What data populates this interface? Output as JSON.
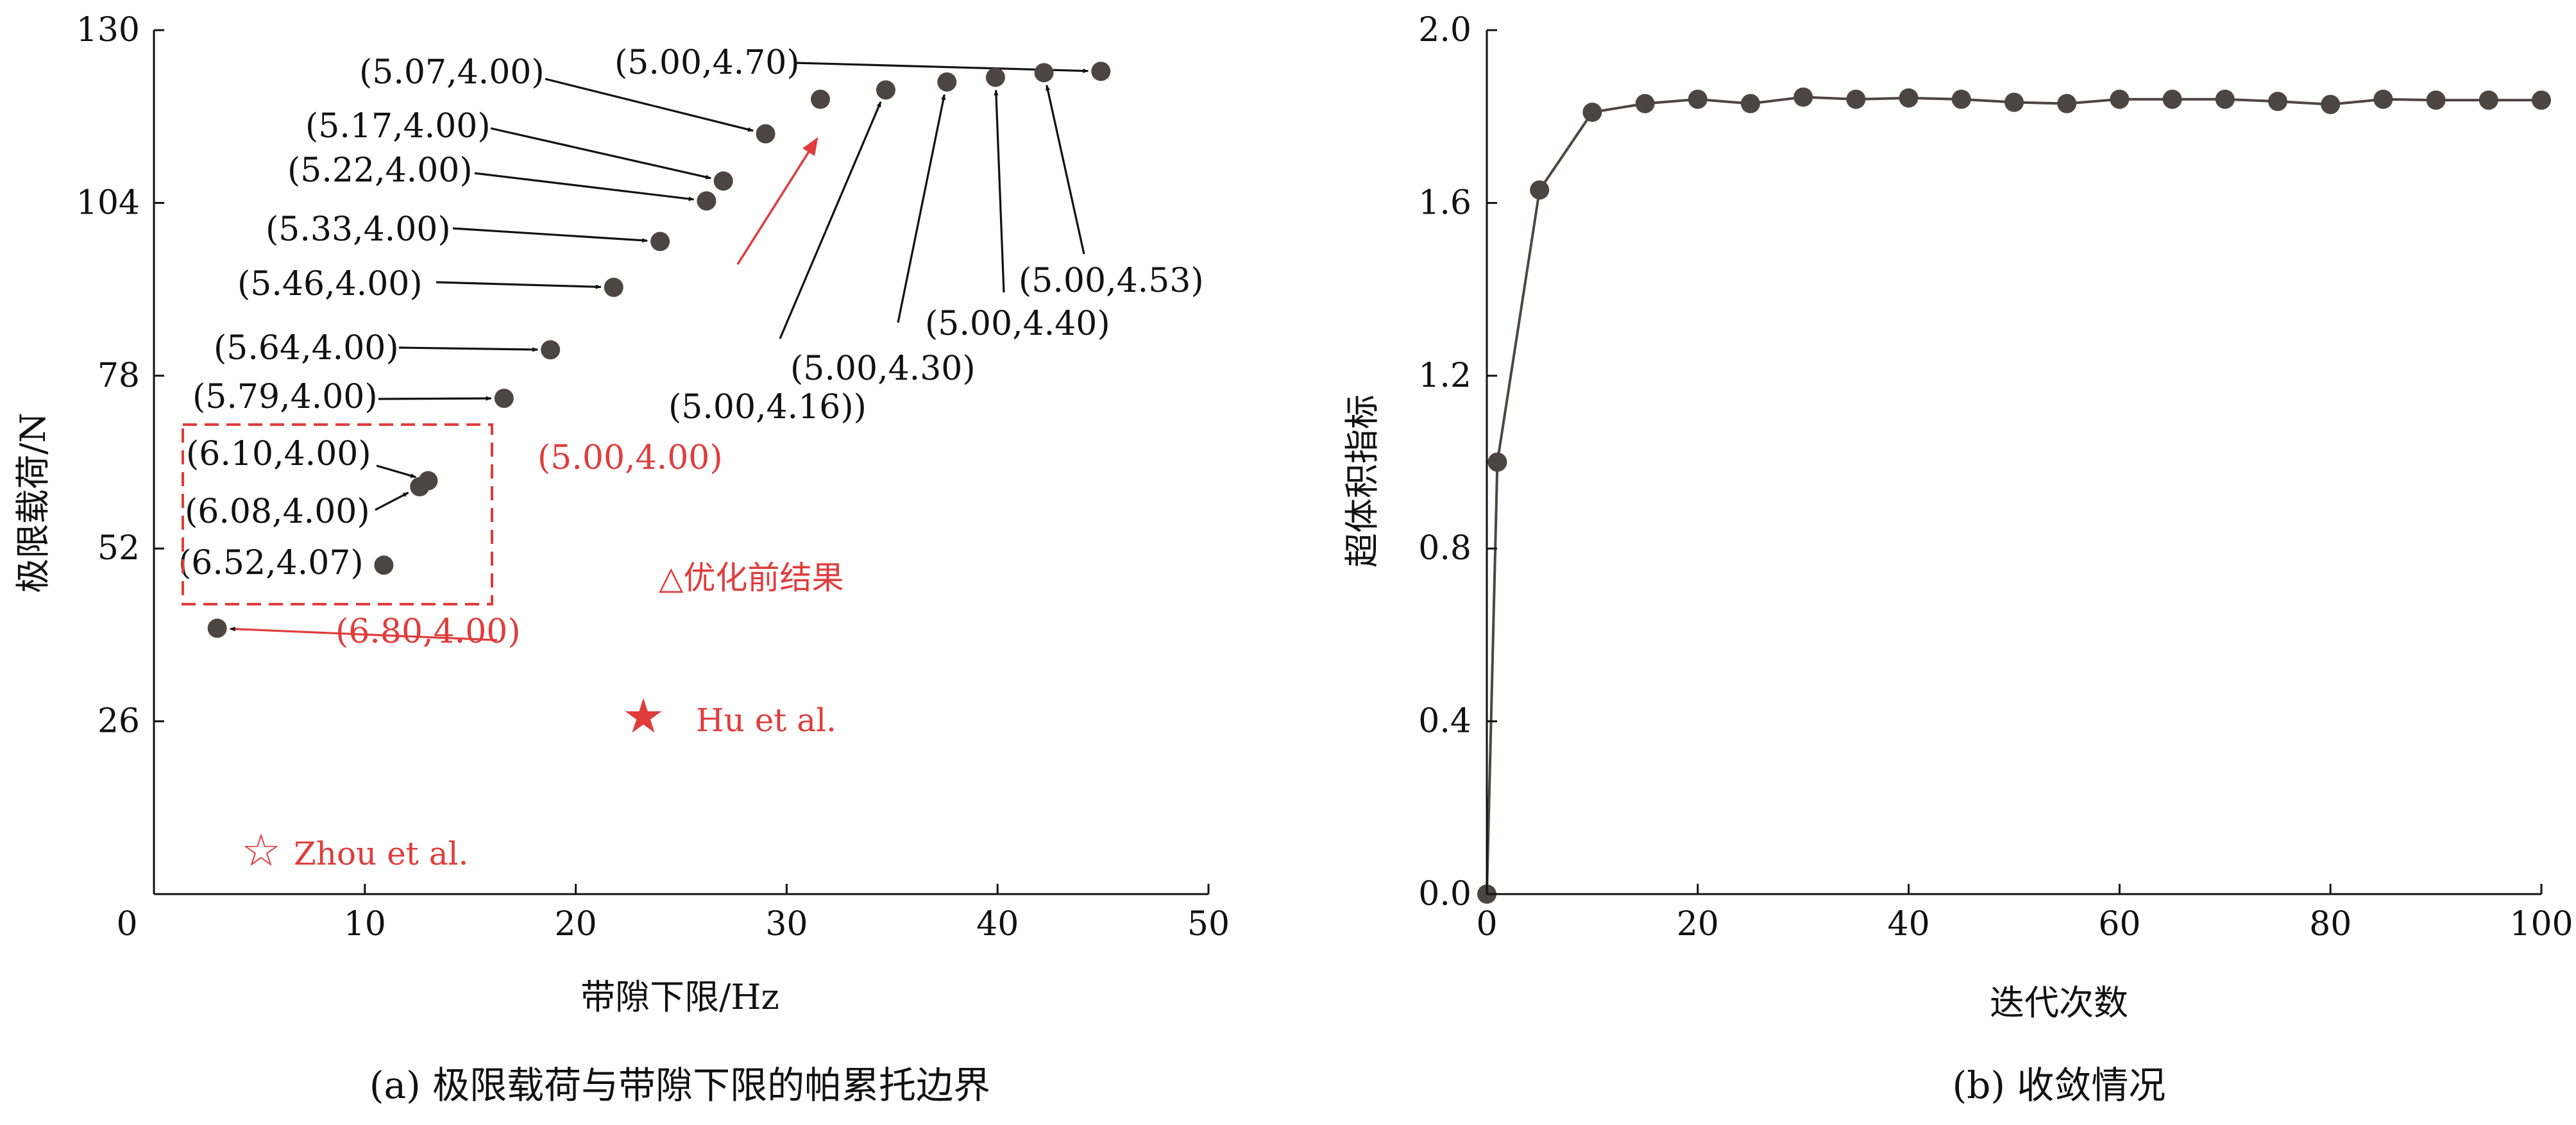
{
  "colors": {
    "point": "#4d4542",
    "line": "#4d4542",
    "highlight": "#e03c3c",
    "axis": "#111111"
  },
  "chart_data": [
    {
      "type": "scatter",
      "caption": "(a) 极限载荷与带隙下限的帕累托边界",
      "xlabel": "带隙下限/Hz",
      "ylabel": "极限载荷/N",
      "xlim": [
        0,
        50
      ],
      "ylim": [
        0,
        130
      ],
      "xticks": [
        "0",
        "10",
        "20",
        "30",
        "40",
        "50"
      ],
      "yticks": [
        "26",
        "52",
        "78",
        "104",
        "130"
      ],
      "grid": false,
      "series": [
        {
          "points": [
            {
              "x": 3.0,
              "y": 40.0,
              "label": "(6.80,4.00)",
              "label_color": "red"
            },
            {
              "x": 10.9,
              "y": 49.5,
              "label": "(6.52,4.07)"
            },
            {
              "x": 12.6,
              "y": 61.3,
              "label": "(6.08,4.00)"
            },
            {
              "x": 13.0,
              "y": 62.2,
              "label": "(6.10,4.00)"
            },
            {
              "x": 16.6,
              "y": 74.6,
              "label": "(5.79,4.00)"
            },
            {
              "x": 18.8,
              "y": 81.9,
              "label": "(5.64,4.00)"
            },
            {
              "x": 21.8,
              "y": 91.3,
              "label": "(5.46,4.00)"
            },
            {
              "x": 24.0,
              "y": 98.2,
              "label": "(5.33,4.00)"
            },
            {
              "x": 26.2,
              "y": 104.3,
              "label": "(5.22,4.00)"
            },
            {
              "x": 27.0,
              "y": 107.3,
              "label": "(5.17,4.00)"
            },
            {
              "x": 29.0,
              "y": 114.4,
              "label": "(5.07,4.00)"
            },
            {
              "x": 31.6,
              "y": 119.6,
              "label": "(5.00,4.00)",
              "label_color": "red"
            },
            {
              "x": 34.7,
              "y": 121.0,
              "label": "(5.00,4.16))"
            },
            {
              "x": 37.6,
              "y": 122.2,
              "label": "(5.00,4.30)"
            },
            {
              "x": 39.9,
              "y": 122.9,
              "label": "(5.00,4.40)"
            },
            {
              "x": 42.2,
              "y": 123.6,
              "label": "(5.00,4.53)"
            },
            {
              "x": 44.9,
              "y": 123.8,
              "label": "(5.00,4.70)"
            }
          ]
        }
      ],
      "reference_points": [
        {
          "x": 24.0,
          "y": 25.0,
          "label": "Hu et al.",
          "symbol": "★"
        },
        {
          "x": 5.0,
          "y": 6.5,
          "label": "Zhou et al.",
          "symbol": "☆"
        }
      ],
      "annotations": [
        "△优化前结果"
      ]
    },
    {
      "type": "line",
      "caption": "(b) 收敛情况",
      "xlabel": "迭代次数",
      "ylabel": "超体积指标",
      "xlim": [
        0,
        100
      ],
      "ylim": [
        0.0,
        2.0
      ],
      "xticks": [
        "0",
        "20",
        "40",
        "60",
        "80",
        "100"
      ],
      "yticks": [
        "0.0",
        "0.4",
        "0.8",
        "1.2",
        "1.6",
        "2.0"
      ],
      "grid": false,
      "series": [
        {
          "x": [
            0,
            1,
            5,
            10,
            15,
            20,
            25,
            30,
            35,
            40,
            45,
            50,
            55,
            60,
            65,
            70,
            75,
            80,
            85,
            90,
            95,
            100
          ],
          "y": [
            0.0,
            1.0,
            1.63,
            1.81,
            1.83,
            1.84,
            1.83,
            1.845,
            1.84,
            1.843,
            1.84,
            1.833,
            1.83,
            1.84,
            1.84,
            1.84,
            1.835,
            1.828,
            1.84,
            1.838,
            1.838,
            1.838
          ]
        }
      ]
    }
  ]
}
